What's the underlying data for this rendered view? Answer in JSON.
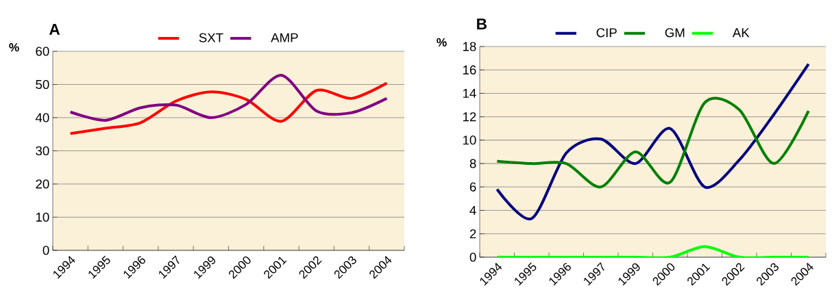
{
  "chart_data": [
    {
      "type": "line",
      "title": "A",
      "ylabel": "%",
      "categories": [
        "1994",
        "1995",
        "1996",
        "1997",
        "1999",
        "2000",
        "2001",
        "2002",
        "2003",
        "2004"
      ],
      "series": [
        {
          "name": "SXT",
          "color": "#ff0000",
          "values": [
            35.2,
            36.8,
            38.5,
            45,
            47.8,
            45.5,
            38.9,
            48.2,
            45.8,
            50.4
          ]
        },
        {
          "name": "AMP",
          "color": "#800080",
          "values": [
            41.7,
            39.2,
            43,
            43.8,
            40,
            44,
            52.8,
            42,
            41.5,
            45.8
          ]
        }
      ],
      "ylim": [
        0,
        60
      ],
      "yticks": [
        0,
        10,
        20,
        30,
        40,
        50,
        60
      ],
      "grid": "y",
      "legend": "top",
      "marker": "none"
    },
    {
      "type": "line",
      "title": "B",
      "ylabel": "%",
      "categories": [
        "1994",
        "1995",
        "1996",
        "1997",
        "1999",
        "2000",
        "2001",
        "2002",
        "2003",
        "2004"
      ],
      "series": [
        {
          "name": "CIP",
          "color": "#000080",
          "values": [
            5.8,
            3.3,
            8.9,
            10.1,
            8,
            11,
            6,
            8.3,
            12.2,
            16.5
          ]
        },
        {
          "name": "GM",
          "color": "#008000",
          "values": [
            8.2,
            8,
            8,
            6,
            9,
            6.4,
            13.2,
            12.6,
            8,
            12.5
          ]
        },
        {
          "name": "AK",
          "color": "#00ff00",
          "values": [
            0,
            0,
            0,
            0,
            0,
            0,
            0.9,
            0,
            0,
            0
          ]
        }
      ],
      "ylim": [
        0,
        18
      ],
      "yticks": [
        0,
        2,
        4,
        6,
        8,
        10,
        12,
        14,
        16,
        18
      ],
      "grid": "y",
      "legend": "top",
      "marker": "none"
    }
  ]
}
